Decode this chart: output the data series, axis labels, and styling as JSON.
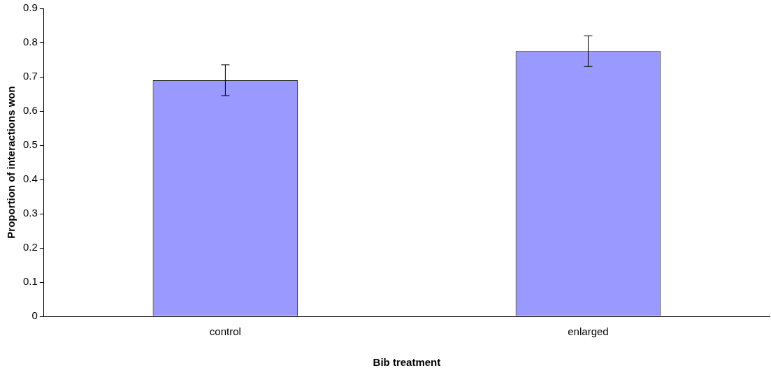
{
  "chart_data": {
    "type": "bar",
    "xlabel": "Bib treatment",
    "ylabel": "Proportion of interactions won",
    "categories": [
      "control",
      "enlarged"
    ],
    "series": [
      {
        "color": "#9999ff",
        "values": [
          0.69,
          0.775
        ],
        "errors": [
          0.045,
          0.045
        ]
      }
    ],
    "ylim": [
      0,
      0.9
    ],
    "yticks": [
      0,
      0.1,
      0.2,
      0.3,
      0.4,
      0.5,
      0.6,
      0.7,
      0.8,
      0.9
    ],
    "grid": false,
    "legend": false
  }
}
